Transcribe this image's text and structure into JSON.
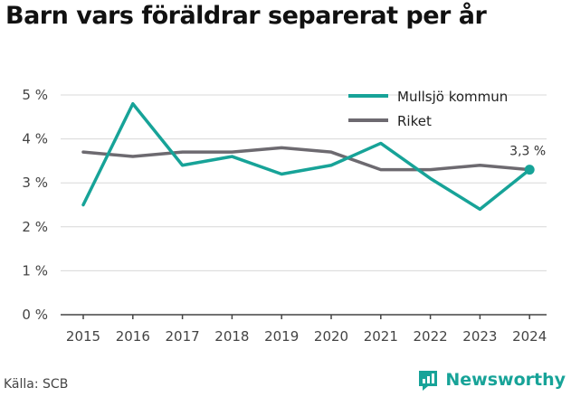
{
  "title": "Barn vars föräldrar separerat per år",
  "source": "Källa: SCB",
  "brand": "Newsworthy",
  "colors": {
    "mullsjo": "#17a398",
    "riket": "#6d6a70",
    "axis": "#444444",
    "grid": "#d8d8d8"
  },
  "chart_data": {
    "type": "line",
    "x": [
      "2015",
      "2016",
      "2017",
      "2018",
      "2019",
      "2020",
      "2021",
      "2022",
      "2023",
      "2024"
    ],
    "y_ticks": [
      "0 %",
      "1 %",
      "2 %",
      "3 %",
      "4 %",
      "5 %"
    ],
    "ylim": [
      0,
      5
    ],
    "legend_position": "top-right",
    "series": [
      {
        "name": "Mullsjö kommun",
        "values": [
          2.5,
          4.8,
          3.4,
          3.6,
          3.2,
          3.4,
          3.9,
          3.1,
          2.4,
          3.3
        ]
      },
      {
        "name": "Riket",
        "values": [
          3.7,
          3.6,
          3.7,
          3.7,
          3.8,
          3.7,
          3.3,
          3.3,
          3.4,
          3.3
        ]
      }
    ],
    "end_label": "3,3 %"
  }
}
